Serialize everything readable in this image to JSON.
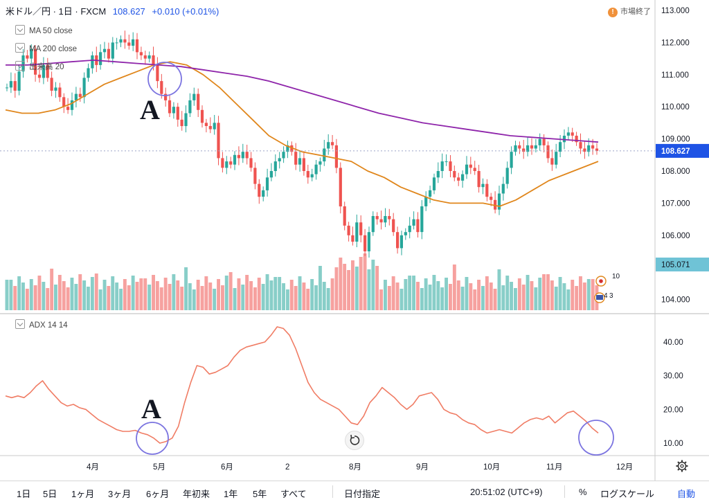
{
  "header": {
    "symbol": "米ドル／円 · 1日 · FXCM",
    "price": "108.627",
    "change": "+0.010 (+0.01%)",
    "market_status": "市場終了",
    "market_badge": "!"
  },
  "indicators": {
    "ma50": "MA 50 close",
    "ma200": "MA 200 close",
    "volume": "出来高 20",
    "adx": "ADX 14 14"
  },
  "colors": {
    "up": "#26a69a",
    "down": "#ef5350",
    "ma50": "#e0861b",
    "ma200": "#8e24aa",
    "adx": "#f07c64",
    "annotation_circle": "#7b74e0",
    "price_label_bg": "#1e53e5",
    "volume_label_bg": "#6fc3d6"
  },
  "toolbar": {
    "ranges": [
      "1日",
      "5日",
      "1ヶ月",
      "3ヶ月",
      "6ヶ月",
      "年初来",
      "1年",
      "5年",
      "すべて"
    ],
    "date_select": "日付指定",
    "clock": "20:51:02 (UTC+9)",
    "percent": "%",
    "log": "ログスケール",
    "auto": "自動"
  },
  "chart_data": [
    {
      "type": "candlestick",
      "title": "米ドル／円 1日 FXCM",
      "y_ticks": [
        "113.000",
        "112.000",
        "111.000",
        "110.000",
        "109.000",
        "108.000",
        "107.000",
        "106.000",
        "105.000",
        "104.000"
      ],
      "ylim": [
        103.8,
        113.3
      ],
      "x_ticks": [
        "4月",
        "5月",
        "6月",
        "2",
        "8月",
        "9月",
        "10月",
        "11月",
        "12月"
      ],
      "last_price_label": "108.627",
      "volume_label": "105.071",
      "close_series": [
        110.6,
        110.8,
        110.5,
        111.1,
        111.6,
        111.5,
        111.8,
        111.0,
        110.9,
        111.3,
        110.9,
        110.5,
        110.6,
        110.3,
        110.0,
        109.9,
        110.2,
        110.4,
        110.3,
        110.9,
        111.2,
        111.6,
        111.3,
        111.7,
        111.8,
        111.5,
        112.0,
        112.0,
        112.1,
        112.0,
        111.9,
        112.1,
        111.7,
        111.6,
        111.5,
        111.6,
        111.3,
        110.8,
        110.4,
        110.2,
        109.8,
        110.0,
        109.6,
        109.4,
        109.8,
        110.2,
        110.4,
        109.9,
        109.5,
        109.4,
        109.3,
        109.5,
        108.4,
        108.1,
        108.3,
        108.2,
        108.5,
        108.4,
        108.6,
        108.4,
        108.1,
        107.6,
        107.2,
        107.4,
        107.8,
        108.0,
        108.3,
        108.4,
        108.6,
        108.8,
        108.6,
        108.2,
        108.4,
        108.0,
        107.8,
        107.9,
        108.2,
        108.3,
        108.7,
        108.9,
        108.8,
        108.1,
        106.9,
        106.3,
        106.0,
        105.8,
        106.4,
        106.0,
        105.5,
        106.1,
        106.6,
        106.5,
        106.4,
        106.6,
        106.5,
        106.1,
        105.6,
        106.0,
        106.1,
        106.3,
        106.5,
        106.1,
        106.9,
        107.2,
        107.4,
        107.8,
        108.0,
        108.3,
        108.3,
        108.0,
        107.8,
        107.7,
        107.9,
        108.2,
        108.1,
        108.0,
        107.5,
        107.6,
        107.2,
        107.1,
        106.8,
        107.3,
        107.6,
        108.1,
        108.6,
        108.8,
        108.7,
        108.6,
        108.8,
        108.7,
        108.8,
        109.0,
        108.8,
        108.4,
        108.2,
        108.6,
        108.9,
        109.1,
        109.2,
        109.1,
        108.9,
        108.7,
        108.6,
        108.8,
        108.7,
        108.627
      ],
      "ma50": [
        109.9,
        109.8,
        109.8,
        109.9,
        110.1,
        110.4,
        110.7,
        110.9,
        111.1,
        111.3,
        111.4,
        111.3,
        111.0,
        110.6,
        110.1,
        109.6,
        109.1,
        108.8,
        108.6,
        108.5,
        108.4,
        108.3,
        108.0,
        107.8,
        107.5,
        107.3,
        107.1,
        107.0,
        107.0,
        107.0,
        106.9,
        107.1,
        107.4,
        107.7,
        107.9,
        108.1,
        108.3
      ],
      "ma200": [
        111.3,
        111.3,
        111.35,
        111.4,
        111.45,
        111.4,
        111.35,
        111.3,
        111.25,
        111.15,
        111.05,
        110.95,
        110.8,
        110.6,
        110.4,
        110.2,
        110.0,
        109.8,
        109.65,
        109.5,
        109.4,
        109.3,
        109.2,
        109.1,
        109.05,
        109.0,
        108.95,
        108.9
      ]
    },
    {
      "type": "line",
      "title": "ADX 14 14",
      "y_ticks": [
        "40.00",
        "30.00",
        "20.00",
        "10.00"
      ],
      "ylim": [
        6,
        48
      ],
      "values": [
        24,
        23.5,
        24,
        23.5,
        25,
        27,
        28.5,
        26,
        24,
        22,
        21,
        21.5,
        20.5,
        20,
        18.5,
        17,
        16,
        15,
        14,
        13.5,
        13.5,
        13.8,
        13,
        12.5,
        11.5,
        10,
        10.5,
        11.5,
        15,
        22,
        28,
        33,
        32.5,
        30.5,
        31,
        32,
        33,
        35.5,
        37.5,
        38.5,
        39,
        39.5,
        40,
        42,
        44.5,
        44,
        42,
        38,
        33,
        28,
        25,
        23,
        22,
        21,
        20,
        18,
        16,
        15.5,
        18,
        22,
        24,
        26.5,
        25,
        23.5,
        21.5,
        20,
        21.5,
        24,
        24.5,
        25,
        23,
        20,
        19,
        18.5,
        17,
        16,
        15.5,
        14,
        13,
        13.5,
        14,
        13.5,
        13,
        14.5,
        16,
        17,
        17.5,
        17,
        18,
        16,
        17.5,
        19,
        19.5,
        18,
        16.5,
        14.5,
        13
      ]
    }
  ],
  "annotations": {
    "label_top": "A",
    "label_bottom": "A"
  }
}
